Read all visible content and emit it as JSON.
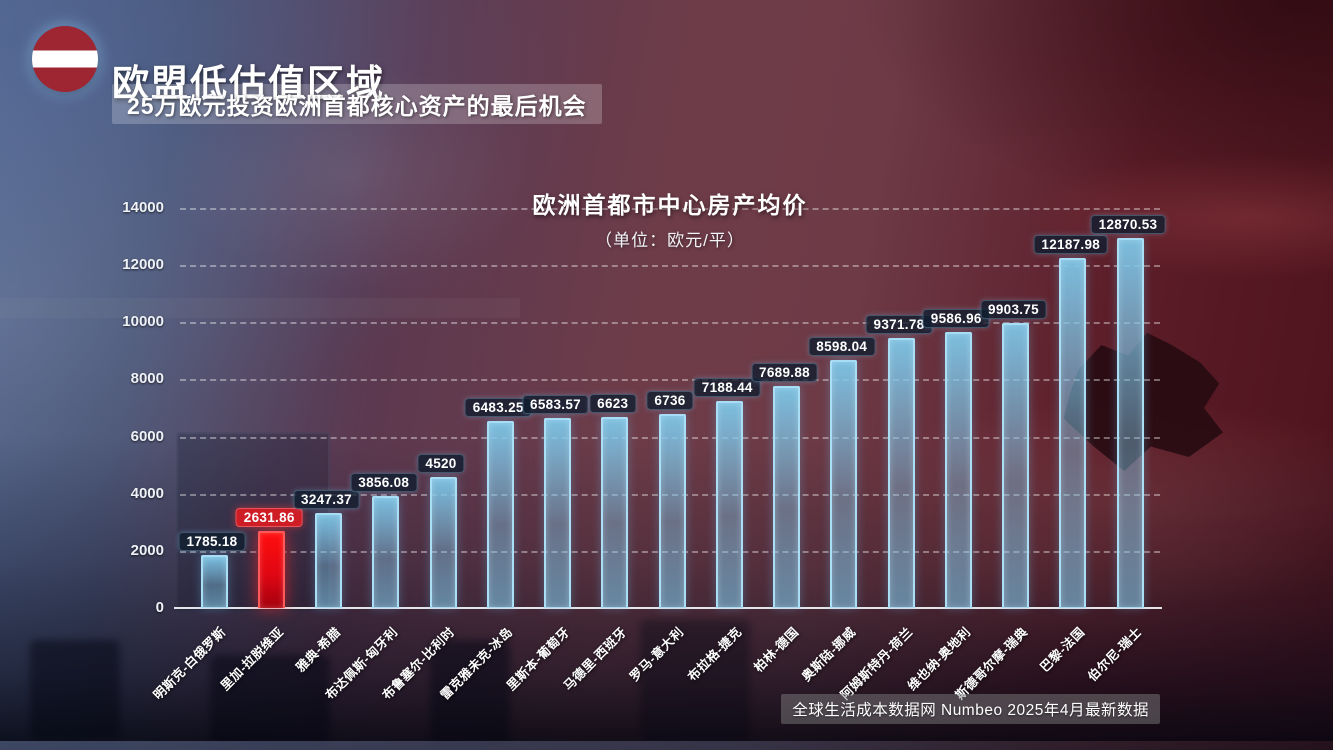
{
  "header": {
    "title": "欧盟低估值区域",
    "subtitle": "25万欧元投资欧洲首都核心资产的最后机会",
    "logo": "latvia-flag-icon",
    "logo_colors": {
      "red": "#9e2633",
      "white": "#ffffff"
    }
  },
  "chart_data": {
    "type": "bar",
    "title": "欧洲首都市中心房产均价",
    "subtitle": "（单位：欧元/平）",
    "categories": [
      "明斯克-白俄罗斯",
      "里加-拉脱维亚",
      "雅典-希腊",
      "布达佩斯-匈牙利",
      "布鲁塞尔-比利时",
      "雷克雅未克-冰岛",
      "里斯本-葡萄牙",
      "马德里-西班牙",
      "罗马-意大利",
      "布拉格-捷克",
      "柏林-德国",
      "奥斯陆-挪威",
      "阿姆斯特丹-荷兰",
      "维也纳-奥地利",
      "斯德哥尔摩-瑞典",
      "巴黎-法国",
      "伯尔尼-瑞士"
    ],
    "values": [
      1785.18,
      2631.86,
      3247.37,
      3856.08,
      4520,
      6483.25,
      6583.57,
      6623,
      6736,
      7188.44,
      7689.88,
      8598.04,
      9371.78,
      9586.96,
      9903.75,
      12187.98,
      12870.53
    ],
    "value_labels": [
      "1785.18",
      "2631.86",
      "3247.37",
      "3856.08",
      "4520",
      "6483.25",
      "6583.57",
      "6623",
      "6736",
      "7188.44",
      "7689.88",
      "8598.04",
      "9371.78",
      "9586.96",
      "9903.75",
      "12187.98",
      "12870.53"
    ],
    "highlight_index": 1,
    "ylim": [
      0,
      14000
    ],
    "yticks": [
      0,
      2000,
      4000,
      6000,
      8000,
      10000,
      12000,
      14000
    ],
    "grid": "horizontal-dashed",
    "legend": "none",
    "colors": {
      "bar": "#7ec8ea",
      "bar_border": "#a9def5",
      "highlight": "#ee1111"
    }
  },
  "footer": {
    "source": "全球生活成本数据网 Numbeo 2025年4月最新数据"
  }
}
